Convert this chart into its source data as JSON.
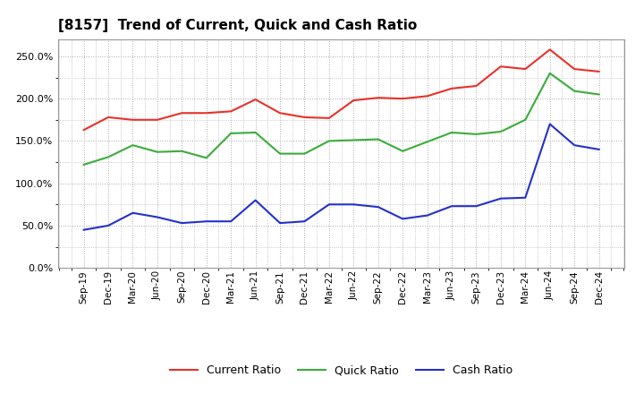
{
  "title": "[8157]  Trend of Current, Quick and Cash Ratio",
  "labels": [
    "Sep-19",
    "Dec-19",
    "Mar-20",
    "Jun-20",
    "Sep-20",
    "Dec-20",
    "Mar-21",
    "Jun-21",
    "Sep-21",
    "Dec-21",
    "Mar-22",
    "Jun-22",
    "Sep-22",
    "Dec-22",
    "Mar-23",
    "Jun-23",
    "Sep-23",
    "Dec-23",
    "Mar-24",
    "Jun-24",
    "Sep-24",
    "Dec-24"
  ],
  "current_ratio": [
    163,
    178,
    175,
    175,
    183,
    183,
    185,
    199,
    183,
    178,
    177,
    198,
    201,
    200,
    203,
    212,
    215,
    238,
    235,
    258,
    235,
    232
  ],
  "quick_ratio": [
    122,
    131,
    145,
    137,
    138,
    130,
    159,
    160,
    135,
    135,
    150,
    151,
    152,
    138,
    149,
    160,
    158,
    161,
    175,
    230,
    209,
    205
  ],
  "cash_ratio": [
    45,
    50,
    65,
    60,
    53,
    55,
    55,
    80,
    53,
    55,
    75,
    75,
    72,
    58,
    62,
    73,
    73,
    82,
    83,
    170,
    145,
    140
  ],
  "current_color": "#e8312a",
  "quick_color": "#3bac3b",
  "cash_color": "#2330cc",
  "background_color": "#ffffff",
  "plot_bg_color": "#ffffff",
  "grid_color": "#aaaaaa",
  "ylim": [
    0,
    270
  ],
  "yticks": [
    0,
    50,
    100,
    150,
    200,
    250
  ],
  "legend_labels": [
    "Current Ratio",
    "Quick Ratio",
    "Cash Ratio"
  ]
}
